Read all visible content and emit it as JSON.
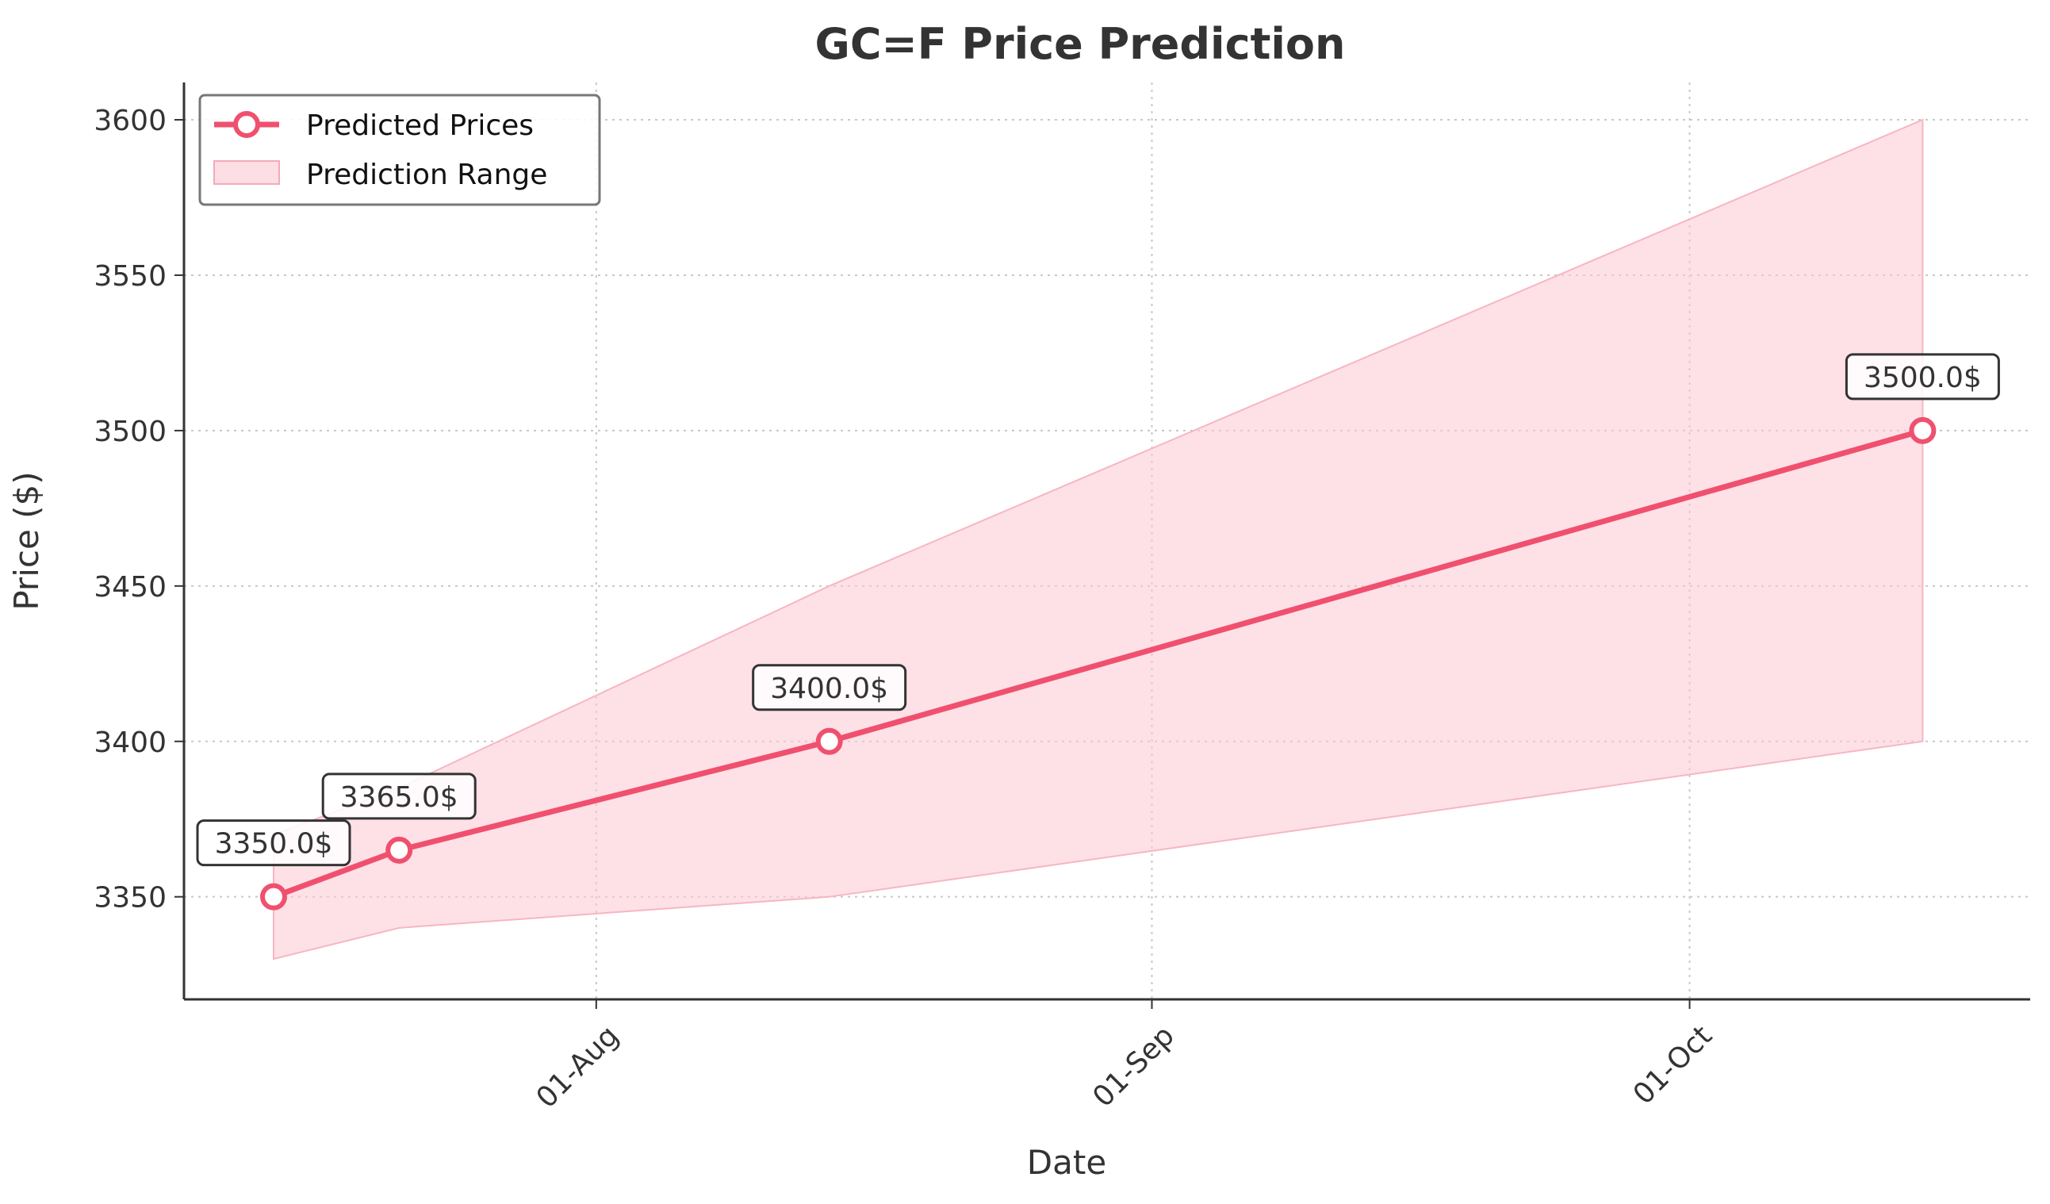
{
  "chart_data": {
    "type": "line",
    "title": "GC=F Price Prediction",
    "xlabel": "Date",
    "ylabel": "Price ($)",
    "x_axis_type": "date",
    "xlim": [
      "2025-07-09",
      "2025-10-20"
    ],
    "ylim": [
      3317,
      3612
    ],
    "x_ticks": [
      {
        "date": "2025-08-01",
        "label": "01-Aug"
      },
      {
        "date": "2025-09-01",
        "label": "01-Sep"
      },
      {
        "date": "2025-10-01",
        "label": "01-Oct"
      }
    ],
    "y_ticks": [
      3350,
      3400,
      3450,
      3500,
      3550,
      3600
    ],
    "grid": true,
    "legend_position": "top-left",
    "series": [
      {
        "name": "Predicted Prices",
        "color": "#f0506e",
        "points": [
          {
            "x": "2025-07-14",
            "y": 3350.0,
            "label": "3350.0$"
          },
          {
            "x": "2025-07-21",
            "y": 3365.0,
            "label": "3365.0$"
          },
          {
            "x": "2025-08-14",
            "y": 3400.0,
            "label": "3400.0$"
          },
          {
            "x": "2025-10-14",
            "y": 3500.0,
            "label": "3500.0$"
          }
        ]
      }
    ],
    "range": {
      "name": "Prediction Range",
      "color": "#fcc8d2",
      "x": [
        "2025-07-14",
        "2025-07-21",
        "2025-08-14",
        "2025-10-14"
      ],
      "lower": [
        3330,
        3340,
        3350,
        3400
      ],
      "upper": [
        3370,
        3385,
        3450,
        3600
      ]
    }
  }
}
